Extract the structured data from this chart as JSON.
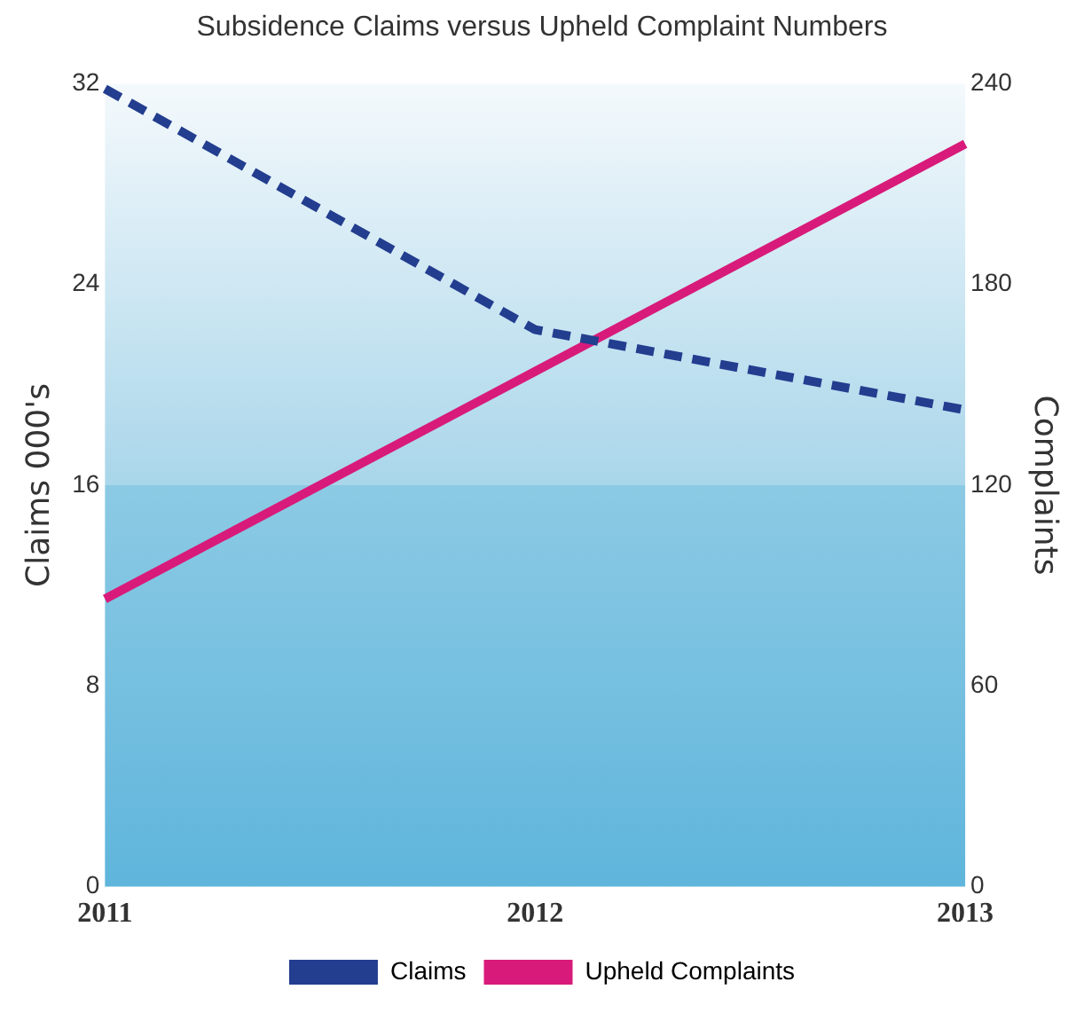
{
  "chart_data": {
    "type": "line",
    "title": "Subsidence Claims versus Upheld Complaint Numbers",
    "ylabel": "Claims 000's",
    "y2label": "Complaints",
    "categories": [
      "2011",
      "2012",
      "2013"
    ],
    "series": [
      {
        "name": "Claims",
        "color": "#233d8f",
        "values": [
          31.8,
          22.2,
          19
        ],
        "line_style": "dashed"
      },
      {
        "name": "Upheld Complaints",
        "color": "#d81b7a",
        "values": [
          86,
          154,
          222
        ],
        "axis": "y2",
        "line_style": "solid"
      }
    ],
    "ylim": [
      0,
      32
    ],
    "yticks": [
      0,
      8,
      16,
      24,
      32
    ],
    "y2lim": [
      0,
      240
    ],
    "y2ticks": [
      0,
      60,
      120,
      180,
      240
    ],
    "grid": false,
    "legend": "bottom",
    "marker": "none"
  }
}
